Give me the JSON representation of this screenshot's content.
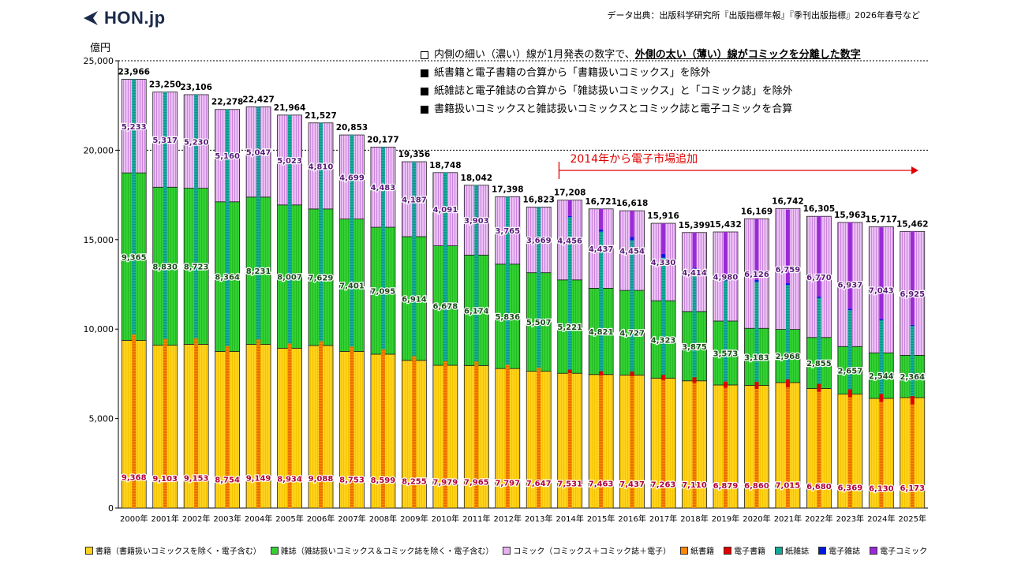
{
  "header": {
    "logo_text": "HON.jp",
    "source": "データ出典：出版科学研究所『出版指標年報』『季刊出版指標』2026年春号など"
  },
  "notes": {
    "line1_prefix": "内側の細い（濃い）線が1月発表の数字で、",
    "line1_emph": "外側の太い（薄い）線がコミックを分離した数字",
    "line2": "紙書籍と電子書籍の合算から「書籍扱いコミックス」を除外",
    "line3": "紙雑誌と電子雑誌の合算から「雑誌扱いコミックス」と「コミック誌」を除外",
    "line4": "書籍扱いコミックスと雑誌扱いコミックスとコミック誌と電子コミックを合算"
  },
  "annotation": {
    "text": "2014年から電子市場追加",
    "color": "#e00000"
  },
  "colors": {
    "books": "#ffd21e",
    "magazines": "#33d133",
    "comics": "#e8b2f2",
    "paper_books": "#ff8800",
    "ebooks": "#e00000",
    "paper_magazines": "#12a99a",
    "emagazines": "#0019e0",
    "ecomics": "#9a2ad6"
  },
  "chart_data": {
    "type": "bar",
    "stacked": true,
    "ylabel": "億円",
    "ylim": [
      0,
      25000
    ],
    "yticks": [
      "0",
      "5,000",
      "10,000",
      "15,000",
      "20,000",
      "25,000"
    ],
    "reference_lines": [
      20000,
      25000
    ],
    "categories": [
      "2000年",
      "2001年",
      "2002年",
      "2003年",
      "2004年",
      "2005年",
      "2006年",
      "2007年",
      "2008年",
      "2009年",
      "2010年",
      "2011年",
      "2012年",
      "2013年",
      "2014年",
      "2015年",
      "2016年",
      "2017年",
      "2018年",
      "2019年",
      "2020年",
      "2021年",
      "2022年",
      "2023年",
      "2024年",
      "2025年"
    ],
    "totals": [
      23966,
      23250,
      23106,
      22278,
      22427,
      21964,
      21527,
      20853,
      20177,
      19356,
      18748,
      18042,
      17398,
      16823,
      17208,
      16721,
      16618,
      15916,
      15399,
      15432,
      16169,
      16742,
      16305,
      15963,
      15717,
      15462
    ],
    "totals_labels": [
      "23,966",
      "23,250",
      "23,106",
      "22,278",
      "22,427",
      "21,964",
      "21,527",
      "20,853",
      "20,177",
      "19,356",
      "18,748",
      "18,042",
      "17,398",
      "16,823",
      "17,208",
      "16,721",
      "16,618",
      "15,916",
      "15,399",
      "15,432",
      "16,169",
      "16,742",
      "16,305",
      "15,963",
      "15,717",
      "15,462"
    ],
    "series": [
      {
        "name": "書籍（書籍扱いコミックスを除く・電子含む）",
        "values": [
          9368,
          9103,
          9153,
          8754,
          9149,
          8934,
          9088,
          8753,
          8599,
          8255,
          7979,
          7965,
          7797,
          7647,
          7531,
          7463,
          7437,
          7263,
          7110,
          6879,
          6860,
          7015,
          6680,
          6369,
          6130,
          6173
        ],
        "labels": [
          "9,368",
          "9,103",
          "9,153",
          "8,754",
          "9,149",
          "8,934",
          "9,088",
          "8,753",
          "8,599",
          "8,255",
          "7,979",
          "7,965",
          "7,797",
          "7,647",
          "7,531",
          "7,463",
          "7,437",
          "7,263",
          "7,110",
          "6,879",
          "6,860",
          "7,015",
          "6,680",
          "6,369",
          "6,130",
          "6,173"
        ]
      },
      {
        "name": "雑誌（雑誌扱いコミックス＆コミック誌を除く・電子含む）",
        "values": [
          9365,
          8830,
          8723,
          8364,
          8231,
          8007,
          7629,
          7401,
          7095,
          6914,
          6678,
          6174,
          5836,
          5507,
          5221,
          4821,
          4727,
          4323,
          3875,
          3573,
          3183,
          2968,
          2855,
          2657,
          2544,
          2364
        ],
        "labels": [
          "9,365",
          "8,830",
          "8,723",
          "8,364",
          "8,231",
          "8,007",
          "7,629",
          "7,401",
          "7,095",
          "6,914",
          "6,678",
          "6,174",
          "5,836",
          "5,507",
          "5,221",
          "4,821",
          "4,727",
          "4,323",
          "3,875",
          "3,573",
          "3,183",
          "2,968",
          "2,855",
          "2,657",
          "2,544",
          "2,364"
        ]
      },
      {
        "name": "コミック（コミックス＋コミック誌＋電子）",
        "values": [
          5233,
          5317,
          5230,
          5160,
          5047,
          5023,
          4810,
          4699,
          4483,
          4187,
          4091,
          3903,
          3765,
          3669,
          4456,
          4437,
          4454,
          4330,
          4414,
          4980,
          6126,
          6759,
          6770,
          6937,
          7043,
          6925
        ],
        "labels": [
          "5,233",
          "5,317",
          "5,230",
          "5,160",
          "5,047",
          "5,023",
          "4,810",
          "4,699",
          "4,483",
          "4,187",
          "4,091",
          "3,903",
          "3,765",
          "3,669",
          "4,456",
          "4,437",
          "4,454",
          "4,330",
          "4,414",
          "4,980",
          "6,126",
          "6,759",
          "6,770",
          "6,937",
          "7,043",
          "6,925"
        ]
      }
    ],
    "inner_series": [
      {
        "name": "紙書籍",
        "values": [
          9706,
          9456,
          9490,
          9056,
          9429,
          9197,
          9326,
          9026,
          8878,
          8492,
          8213,
          8199,
          8013,
          7851,
          7544,
          7419,
          7370,
          7152,
          6991,
          6723,
          6661,
          6740,
          6497,
          6194,
          5937,
          5789
        ]
      },
      {
        "name": "電子書籍",
        "values": [
          0,
          0,
          0,
          0,
          0,
          0,
          0,
          0,
          0,
          0,
          0,
          0,
          0,
          0,
          192,
          228,
          258,
          290,
          321,
          349,
          401,
          449,
          446,
          446,
          440,
          473
        ]
      },
      {
        "name": "紙雑誌",
        "values": [
          14261,
          13794,
          13616,
          13222,
          12998,
          12767,
          12201,
          11827,
          11299,
          10864,
          10536,
          9844,
          9386,
          8972,
          8520,
          7801,
          7339,
          6548,
          5930,
          5637,
          5576,
          5276,
          4795,
          4418,
          4119,
          3910
        ]
      },
      {
        "name": "電子雑誌",
        "values": [
          0,
          0,
          0,
          0,
          0,
          0,
          0,
          0,
          0,
          0,
          0,
          0,
          0,
          0,
          70,
          125,
          191,
          214,
          193,
          130,
          110,
          99,
          88,
          81,
          73,
          66
        ]
      },
      {
        "name": "電子コミック",
        "values": [
          0,
          0,
          0,
          0,
          0,
          0,
          0,
          0,
          0,
          0,
          0,
          0,
          0,
          0,
          882,
          1149,
          1460,
          1711,
          1965,
          2593,
          3420,
          4114,
          4479,
          4830,
          5122,
          5239
        ]
      }
    ],
    "annotation_from": "2014年"
  },
  "legend": [
    {
      "key": "books",
      "label": "書籍（書籍扱いコミックスを除く・電子含む）"
    },
    {
      "key": "magazines",
      "label": "雑誌（雑誌扱いコミックス＆コミック誌を除く・電子含む）"
    },
    {
      "key": "comics",
      "label": "コミック（コミックス＋コミック誌＋電子）"
    },
    {
      "key": "paper_books",
      "label": "紙書籍"
    },
    {
      "key": "ebooks",
      "label": "電子書籍"
    },
    {
      "key": "paper_magazines",
      "label": "紙雑誌"
    },
    {
      "key": "emagazines",
      "label": "電子雑誌"
    },
    {
      "key": "ecomics",
      "label": "電子コミック"
    }
  ]
}
